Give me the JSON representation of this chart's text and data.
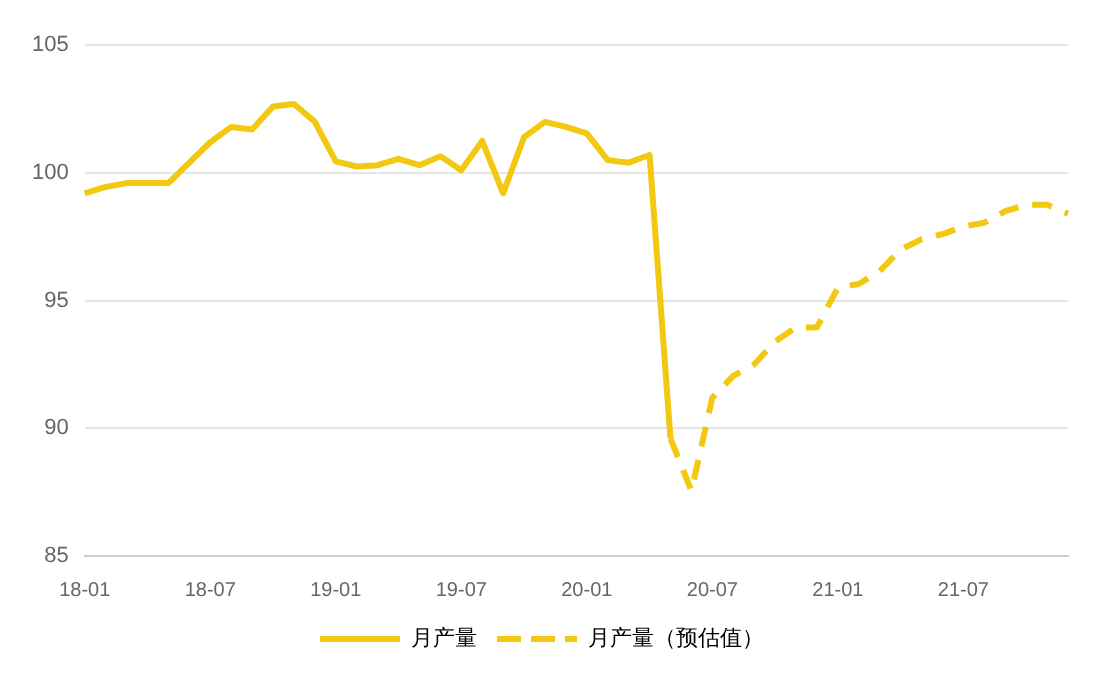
{
  "chart_data": {
    "type": "line",
    "categories": [
      "18-01",
      null,
      null,
      null,
      null,
      null,
      "18-07",
      null,
      null,
      null,
      null,
      null,
      "19-01",
      null,
      null,
      null,
      null,
      null,
      "19-07",
      null,
      null,
      null,
      null,
      null,
      "20-01",
      null,
      null,
      null,
      null,
      null,
      "20-07",
      null,
      null,
      null,
      null,
      null,
      "21-01",
      null,
      null,
      null,
      null,
      null,
      "21-07",
      null,
      null,
      null,
      null,
      null
    ],
    "series": [
      {
        "name": "月产量",
        "color": "#f2c811",
        "line_style": "solid",
        "values": [
          99.2,
          99.45,
          99.6,
          99.6,
          99.6,
          100.4,
          101.2,
          101.8,
          101.7,
          102.6,
          102.7,
          102.0,
          100.45,
          100.25,
          100.3,
          100.55,
          100.3,
          100.65,
          100.1,
          101.25,
          99.2,
          101.4,
          102.0,
          101.8,
          101.55,
          100.5,
          100.4,
          100.7,
          89.6,
          null,
          null,
          null,
          null,
          null,
          null,
          null,
          null,
          null,
          null,
          null,
          null,
          null,
          null,
          null,
          null,
          null,
          null,
          null
        ]
      },
      {
        "name": "月产量（预估值）",
        "color": "#f2c811",
        "line_style": "dashed",
        "values": [
          null,
          null,
          null,
          null,
          null,
          null,
          null,
          null,
          null,
          null,
          null,
          null,
          null,
          null,
          null,
          null,
          null,
          null,
          null,
          null,
          null,
          null,
          null,
          null,
          null,
          null,
          null,
          null,
          89.6,
          87.55,
          91.2,
          92.05,
          92.5,
          93.4,
          93.95,
          93.95,
          95.5,
          95.65,
          96.15,
          97.0,
          97.4,
          97.6,
          97.9,
          98.05,
          98.5,
          98.75,
          98.75,
          98.4
        ]
      }
    ],
    "ylim": [
      85,
      105
    ],
    "yticks": [
      85,
      90,
      95,
      100,
      105
    ],
    "grid": "y",
    "legend": "bottom",
    "marker": "none"
  }
}
